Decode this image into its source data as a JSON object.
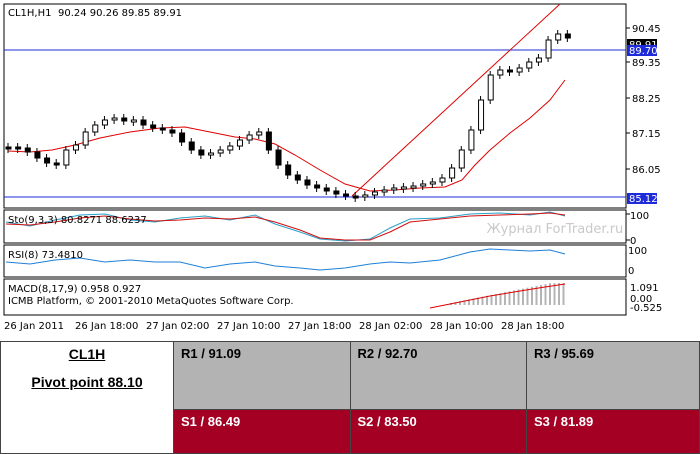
{
  "header": {
    "symbol_tf": "CL1H,H1",
    "ohlc": "90.24 90.26 89.85 89.91"
  },
  "price_axis": {
    "ticks": [
      "90.45",
      "89.35",
      "88.25",
      "87.15",
      "86.05"
    ],
    "current_price": "89.91",
    "hline_top": "89.70",
    "hline_bottom": "85.12"
  },
  "stoch": {
    "label": "Sto(9,3,3) 80.8271 88.6237",
    "ticks": [
      "100",
      "0"
    ]
  },
  "rsi": {
    "label": "RSI(8) 73.4810",
    "ticks": [
      "100",
      "0"
    ]
  },
  "macd": {
    "label": "MACD(8,17,9) 0.958 0.927",
    "copyright": "ICMB Platform, © 2001-2010 MetaQuotes Software Corp.",
    "ticks": [
      "1.091",
      "0.00",
      "-0.525"
    ]
  },
  "watermark": "Журнал ForTrader.ru",
  "time_axis": [
    "26 Jan 2011",
    "26 Jan 18:00",
    "27 Jan 02:00",
    "27 Jan 10:00",
    "27 Jan 18:00",
    "28 Jan 02:00",
    "28 Jan 10:00",
    "28 Jan 18:00"
  ],
  "colors": {
    "ma": "#e00000",
    "hline": "#1e2bd8",
    "stoch_main": "#2aa0c8",
    "stoch_signal": "#d01010",
    "rsi": "#1e7fd8",
    "macd_hist": "#b4b4b4",
    "macd_signal": "#e00000",
    "resistance": "#b3b3b3",
    "support": "#a30024"
  },
  "pivot_table": {
    "instrument": "CL1H",
    "pivot": "Pivot point 88.10",
    "resistances": [
      "R1 / 91.09",
      "R2  / 92.70",
      "R3 / 95.69"
    ],
    "supports": [
      "S1 / 86.49",
      "S2 / 83.50",
      "S3 / 81.89"
    ]
  }
}
